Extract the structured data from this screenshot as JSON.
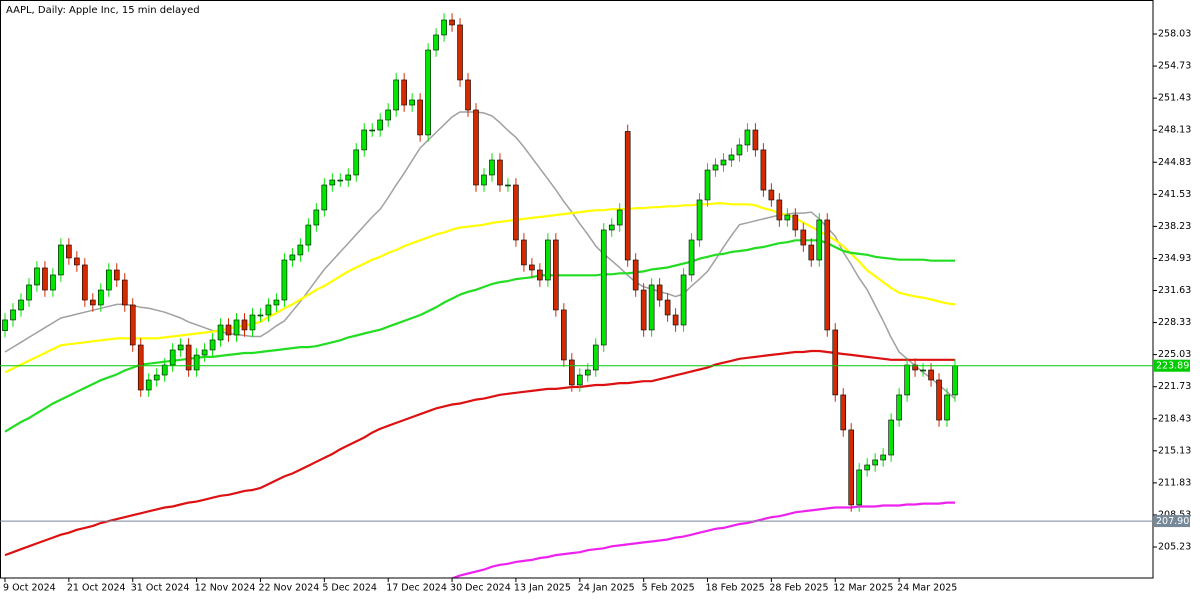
{
  "chart_data": {
    "type": "candlestick",
    "title": "AAPL, Daily:  Apple Inc, 15 min delayed",
    "categories": [
      "9 Oct 2024",
      null,
      null,
      null,
      null,
      null,
      null,
      null,
      "21 Oct 2024",
      null,
      null,
      null,
      null,
      null,
      null,
      null,
      "31 Oct 2024",
      null,
      null,
      null,
      null,
      null,
      null,
      null,
      "12 Nov 2024",
      null,
      null,
      null,
      null,
      null,
      null,
      null,
      "22 Nov 2024",
      null,
      null,
      null,
      null,
      null,
      null,
      null,
      "5 Dec 2024",
      null,
      null,
      null,
      null,
      null,
      null,
      null,
      "17 Dec 2024",
      null,
      null,
      null,
      null,
      null,
      null,
      null,
      "30 Dec 2024",
      null,
      null,
      null,
      null,
      null,
      null,
      null,
      "13 Jan 2025",
      null,
      null,
      null,
      null,
      null,
      null,
      null,
      "24 Jan 2025",
      null,
      null,
      null,
      null,
      null,
      null,
      null,
      "5 Feb 2025",
      null,
      null,
      null,
      null,
      null,
      null,
      null,
      "18 Feb 2025",
      null,
      null,
      null,
      null,
      null,
      null,
      null,
      "28 Feb 2025",
      null,
      null,
      null,
      null,
      null,
      null,
      null,
      "12 Mar 2025",
      null,
      null,
      null,
      null,
      null,
      null,
      null,
      "24 Mar 2025",
      null,
      null,
      null,
      null,
      null,
      null,
      null
    ],
    "open": [
      227.5,
      228.6,
      229.63,
      230.65,
      232.2,
      233.95,
      231.68,
      233.23,
      236.31,
      234.98,
      234.26,
      230.65,
      230.14,
      231.68,
      233.74,
      232.71,
      230.14,
      226.02,
      221.39,
      222.42,
      222.93,
      223.96,
      225.51,
      226.02,
      223.45,
      224.99,
      225.51,
      226.54,
      228.08,
      227.05,
      228.6,
      227.57,
      229.11,
      229.11,
      230.14,
      230.65,
      234.77,
      235.29,
      236.31,
      238.37,
      239.92,
      242.49,
      243.0,
      243.0,
      243.52,
      246.1,
      248.15,
      248.15,
      249.18,
      250.21,
      253.3,
      250.72,
      251.24,
      247.64,
      256.38,
      257.93,
      259.47,
      258.96,
      253.3,
      250.21,
      242.49,
      243.52,
      245.06,
      242.49,
      242.49,
      236.83,
      234.26,
      233.74,
      232.71,
      236.83,
      229.63,
      224.48,
      221.91,
      222.93,
      223.45,
      226.02,
      237.86,
      238.37,
      248.0,
      234.77,
      231.68,
      227.57,
      232.2,
      230.65,
      229.11,
      228.08,
      233.23,
      236.83,
      240.95,
      244.03,
      244.55,
      245.06,
      245.58,
      246.61,
      248.15,
      246.1,
      241.97,
      240.95,
      238.89,
      239.4,
      237.86,
      236.31,
      234.77,
      238.89,
      227.57,
      220.88,
      217.28,
      209.56,
      213.16,
      213.67,
      214.19,
      214.7,
      218.3,
      220.88,
      223.96,
      223.45,
      223.45,
      222.42,
      218.3,
      220.88
    ],
    "high": [
      229.3,
      230.33,
      231.35,
      232.9,
      234.65,
      234.65,
      233.93,
      237.01,
      237.01,
      235.68,
      234.96,
      231.35,
      232.38,
      234.44,
      234.44,
      233.41,
      230.84,
      226.72,
      223.12,
      223.63,
      224.66,
      226.21,
      226.72,
      226.72,
      225.69,
      226.21,
      227.24,
      228.78,
      228.78,
      229.3,
      229.3,
      229.81,
      229.81,
      230.84,
      231.35,
      235.47,
      235.99,
      237.01,
      239.07,
      240.62,
      243.19,
      243.7,
      243.7,
      244.22,
      246.8,
      248.85,
      248.85,
      249.88,
      250.91,
      254.0,
      254.0,
      251.94,
      251.94,
      257.08,
      258.63,
      260.17,
      260.17,
      259.66,
      254.0,
      250.91,
      244.22,
      245.76,
      245.76,
      243.19,
      243.19,
      237.53,
      234.96,
      234.44,
      237.53,
      237.53,
      230.33,
      225.18,
      223.63,
      224.15,
      226.72,
      238.56,
      239.07,
      240.62,
      248.7,
      235.47,
      232.38,
      232.9,
      232.9,
      231.35,
      229.81,
      233.93,
      237.53,
      241.65,
      244.73,
      245.25,
      245.76,
      246.28,
      247.31,
      248.85,
      248.85,
      246.8,
      242.67,
      241.65,
      240.1,
      240.1,
      238.56,
      237.01,
      239.59,
      239.59,
      228.27,
      221.58,
      217.98,
      213.86,
      214.37,
      214.89,
      215.4,
      219.0,
      221.58,
      224.66,
      224.66,
      224.15,
      224.15,
      223.12,
      221.58,
      224.59
    ],
    "low": [
      226.8,
      227.9,
      228.93,
      229.95,
      231.5,
      230.98,
      230.98,
      232.53,
      234.28,
      233.56,
      229.95,
      229.44,
      229.44,
      230.98,
      232.01,
      229.44,
      225.32,
      220.69,
      220.69,
      221.72,
      222.23,
      223.26,
      224.81,
      222.75,
      222.75,
      224.29,
      224.81,
      225.84,
      226.35,
      226.35,
      226.87,
      226.87,
      228.41,
      228.41,
      229.44,
      229.95,
      234.07,
      234.59,
      235.61,
      237.67,
      239.22,
      241.79,
      242.3,
      242.3,
      242.82,
      245.4,
      247.45,
      247.45,
      248.48,
      249.51,
      250.02,
      250.02,
      246.94,
      246.94,
      255.68,
      257.23,
      258.26,
      252.6,
      249.51,
      241.79,
      241.79,
      242.82,
      241.79,
      241.79,
      236.13,
      233.56,
      233.04,
      232.01,
      232.01,
      228.93,
      223.78,
      221.21,
      221.21,
      222.23,
      222.75,
      225.32,
      237.16,
      237.67,
      234.07,
      230.98,
      226.87,
      226.87,
      229.95,
      228.41,
      227.38,
      227.38,
      232.53,
      236.13,
      240.25,
      243.33,
      243.85,
      244.36,
      244.88,
      245.91,
      245.4,
      241.27,
      240.25,
      238.19,
      238.19,
      237.16,
      235.61,
      234.07,
      234.07,
      226.87,
      220.18,
      216.58,
      208.86,
      208.86,
      212.46,
      212.97,
      213.49,
      214.0,
      217.6,
      220.18,
      222.75,
      222.75,
      221.72,
      217.6,
      217.6,
      220.18
    ],
    "close": [
      228.6,
      229.63,
      230.65,
      232.2,
      233.95,
      231.68,
      233.23,
      236.31,
      234.98,
      234.26,
      230.65,
      230.14,
      231.68,
      233.74,
      232.71,
      230.14,
      226.02,
      221.39,
      222.42,
      222.93,
      223.96,
      225.51,
      226.02,
      223.45,
      224.99,
      225.51,
      226.54,
      228.08,
      227.05,
      228.6,
      227.57,
      229.11,
      229.11,
      230.14,
      230.65,
      234.77,
      235.29,
      236.31,
      238.37,
      239.92,
      242.49,
      243.0,
      243.0,
      243.52,
      246.1,
      248.15,
      248.15,
      249.18,
      250.21,
      253.3,
      250.72,
      251.24,
      247.64,
      256.38,
      257.93,
      259.47,
      258.96,
      253.3,
      250.21,
      242.49,
      243.52,
      245.06,
      242.49,
      242.49,
      236.83,
      234.26,
      233.74,
      232.71,
      236.83,
      229.63,
      224.48,
      221.91,
      222.93,
      223.45,
      226.02,
      237.86,
      238.37,
      239.92,
      234.77,
      231.68,
      227.57,
      232.2,
      230.65,
      229.11,
      228.08,
      233.23,
      236.83,
      240.95,
      244.03,
      244.55,
      245.06,
      245.58,
      246.61,
      248.15,
      246.1,
      241.97,
      240.95,
      238.89,
      239.4,
      237.86,
      236.31,
      234.77,
      238.89,
      227.57,
      220.88,
      217.28,
      209.56,
      213.16,
      213.67,
      214.19,
      214.7,
      218.3,
      220.88,
      223.96,
      223.45,
      223.45,
      222.42,
      218.3,
      220.88,
      223.89
    ],
    "up_color": "#00e600",
    "down_color": "#d42a00",
    "moving_averages": [
      {
        "color": "#a0a0a0",
        "values": [
          225.3,
          225.8,
          226.3,
          226.8,
          227.3,
          227.8,
          228.3,
          228.8,
          229.0,
          229.2,
          229.4,
          229.6,
          229.8,
          230.0,
          230.2,
          230.2,
          230.1,
          229.9,
          229.8,
          229.6,
          229.4,
          229.1,
          228.8,
          228.4,
          228.1,
          227.8,
          227.5,
          227.4,
          227.2,
          227.1,
          227.0,
          226.9,
          226.9,
          227.4,
          228.0,
          228.5,
          229.5,
          230.5,
          231.6,
          232.7,
          233.8,
          234.7,
          235.6,
          236.5,
          237.4,
          238.3,
          239.2,
          240.0,
          241.2,
          242.5,
          243.7,
          245.0,
          246.3,
          247.1,
          247.9,
          248.7,
          249.5,
          250.0,
          250.0,
          250.0,
          249.9,
          249.6,
          248.9,
          248.1,
          247.4,
          246.4,
          245.3,
          244.2,
          243.1,
          242.0,
          240.8,
          239.7,
          238.5,
          237.4,
          236.2,
          235.4,
          234.7,
          234.0,
          233.2,
          232.5,
          232.0,
          231.8,
          231.5,
          231.3,
          231.0,
          231.3,
          232.1,
          232.8,
          233.6,
          234.8,
          236.1,
          237.3,
          238.4,
          238.6,
          238.8,
          239.0,
          239.2,
          239.4,
          239.5,
          239.6,
          239.6,
          239.7,
          239.0,
          238.1,
          237.2,
          235.6,
          234.3,
          232.9,
          231.7,
          230.1,
          228.5,
          226.8,
          225.3,
          224.6,
          223.9,
          223.2,
          222.6,
          221.9,
          221.2,
          220.5
        ]
      },
      {
        "color": "#ffff00",
        "values": [
          223.2,
          223.6,
          224.0,
          224.4,
          224.8,
          225.2,
          225.6,
          226.0,
          226.1,
          226.2,
          226.3,
          226.4,
          226.5,
          226.6,
          226.7,
          226.7,
          226.7,
          226.7,
          226.7,
          226.7,
          226.8,
          226.9,
          227.0,
          227.1,
          227.2,
          227.3,
          227.4,
          227.5,
          227.7,
          227.9,
          228.0,
          228.2,
          228.4,
          228.9,
          229.3,
          229.8,
          230.2,
          230.7,
          231.2,
          231.7,
          232.1,
          232.6,
          233.1,
          233.6,
          234.0,
          234.4,
          234.8,
          235.1,
          235.5,
          235.8,
          236.2,
          236.5,
          236.8,
          237.1,
          237.4,
          237.6,
          237.9,
          238.1,
          238.2,
          238.3,
          238.4,
          238.6,
          238.7,
          238.8,
          238.9,
          239.0,
          239.1,
          239.2,
          239.3,
          239.4,
          239.5,
          239.6,
          239.7,
          239.8,
          239.9,
          239.9,
          240.0,
          240.0,
          240.0,
          240.1,
          240.1,
          240.2,
          240.2,
          240.3,
          240.3,
          240.4,
          240.4,
          240.5,
          240.5,
          240.6,
          240.6,
          240.5,
          240.5,
          240.5,
          240.4,
          240.1,
          239.9,
          239.6,
          239.4,
          239.1,
          238.6,
          238.2,
          237.7,
          237.3,
          236.8,
          236.2,
          235.4,
          234.6,
          233.7,
          233.1,
          232.5,
          231.9,
          231.4,
          231.2,
          231.0,
          230.9,
          230.7,
          230.5,
          230.3,
          230.2
        ]
      },
      {
        "color": "#22dd22",
        "values": [
          217.1,
          217.6,
          218.1,
          218.5,
          219.0,
          219.5,
          220.0,
          220.4,
          220.8,
          221.2,
          221.6,
          222.0,
          222.4,
          222.7,
          223.0,
          223.4,
          223.7,
          224.0,
          224.1,
          224.2,
          224.3,
          224.4,
          224.5,
          224.6,
          224.7,
          224.8,
          224.8,
          224.9,
          225.0,
          225.1,
          225.2,
          225.2,
          225.3,
          225.4,
          225.5,
          225.6,
          225.7,
          225.8,
          225.8,
          225.9,
          226.1,
          226.3,
          226.5,
          226.8,
          227.0,
          227.2,
          227.4,
          227.6,
          227.9,
          228.2,
          228.5,
          228.8,
          229.1,
          229.5,
          229.9,
          230.4,
          230.8,
          231.2,
          231.5,
          231.7,
          232.0,
          232.3,
          232.5,
          232.6,
          232.8,
          232.9,
          233.0,
          233.2,
          233.2,
          233.2,
          233.2,
          233.2,
          233.2,
          233.2,
          233.2,
          233.3,
          233.3,
          233.4,
          233.4,
          233.5,
          233.6,
          233.8,
          233.9,
          234.0,
          234.2,
          234.4,
          234.6,
          234.9,
          235.1,
          235.3,
          235.4,
          235.6,
          235.7,
          235.8,
          236.0,
          236.1,
          236.3,
          236.5,
          236.6,
          236.8,
          236.8,
          236.8,
          236.8,
          236.5,
          236.1,
          235.7,
          235.5,
          235.4,
          235.3,
          235.1,
          235.0,
          234.9,
          234.8,
          234.8,
          234.8,
          234.8,
          234.7,
          234.7,
          234.7,
          234.7
        ]
      },
      {
        "color": "#dd1111",
        "values": [
          204.4,
          204.7,
          205.0,
          205.3,
          205.6,
          205.9,
          206.2,
          206.5,
          206.7,
          207.0,
          207.2,
          207.4,
          207.7,
          207.9,
          208.1,
          208.3,
          208.5,
          208.7,
          208.9,
          209.1,
          209.3,
          209.4,
          209.6,
          209.8,
          209.9,
          210.1,
          210.3,
          210.5,
          210.6,
          210.8,
          211.0,
          211.1,
          211.3,
          211.7,
          212.1,
          212.5,
          212.8,
          213.2,
          213.6,
          214.0,
          214.4,
          214.8,
          215.3,
          215.7,
          216.1,
          216.5,
          217.0,
          217.4,
          217.7,
          218.0,
          218.3,
          218.6,
          218.9,
          219.2,
          219.5,
          219.7,
          219.9,
          220.0,
          220.2,
          220.4,
          220.5,
          220.7,
          220.9,
          221.0,
          221.1,
          221.2,
          221.3,
          221.4,
          221.5,
          221.5,
          221.6,
          221.7,
          221.7,
          221.8,
          221.9,
          221.9,
          222.0,
          222.1,
          222.1,
          222.2,
          222.3,
          222.3,
          222.5,
          222.7,
          222.9,
          223.1,
          223.3,
          223.5,
          223.7,
          224.0,
          224.2,
          224.4,
          224.6,
          224.7,
          224.8,
          224.9,
          225.0,
          225.1,
          225.2,
          225.3,
          225.3,
          225.4,
          225.4,
          225.3,
          225.2,
          225.1,
          225.0,
          224.9,
          224.8,
          224.7,
          224.6,
          224.5,
          224.5,
          224.5,
          224.5,
          224.5,
          224.5,
          224.5,
          224.5,
          224.5
        ]
      },
      {
        "color": "#ee22ee",
        "values": [
          null,
          null,
          null,
          null,
          null,
          null,
          null,
          null,
          null,
          null,
          null,
          null,
          null,
          null,
          null,
          null,
          null,
          null,
          null,
          null,
          null,
          null,
          null,
          null,
          null,
          null,
          null,
          null,
          null,
          null,
          null,
          null,
          null,
          null,
          null,
          null,
          null,
          null,
          null,
          null,
          null,
          null,
          null,
          null,
          null,
          null,
          null,
          null,
          null,
          null,
          null,
          null,
          null,
          null,
          null,
          null,
          202.0,
          202.3,
          202.5,
          202.7,
          202.9,
          203.2,
          203.4,
          203.5,
          203.7,
          203.8,
          203.9,
          204.1,
          204.2,
          204.4,
          204.5,
          204.6,
          204.7,
          204.9,
          205.0,
          205.1,
          205.3,
          205.4,
          205.5,
          205.6,
          205.7,
          205.8,
          205.9,
          206.0,
          206.2,
          206.3,
          206.5,
          206.7,
          206.9,
          207.1,
          207.2,
          207.4,
          207.6,
          207.7,
          207.9,
          208.1,
          208.3,
          208.4,
          208.6,
          208.8,
          208.9,
          209.0,
          209.1,
          209.2,
          209.3,
          209.3,
          209.3,
          209.4,
          209.4,
          209.4,
          209.5,
          209.5,
          209.5,
          209.6,
          209.6,
          209.7,
          209.7,
          209.7,
          209.8,
          209.8
        ]
      }
    ],
    "price_lines": [
      {
        "value": 223.89,
        "color": "#00cc00"
      },
      {
        "value": 207.9,
        "label": "207.90",
        "color": "#778899"
      }
    ],
    "ylim": [
      202.04,
      261.53
    ],
    "yticks": [
      258.03,
      254.73,
      251.43,
      248.13,
      244.83,
      241.53,
      238.23,
      234.93,
      231.63,
      228.33,
      225.03,
      221.73,
      218.43,
      215.13,
      211.83,
      208.53,
      205.23
    ]
  }
}
